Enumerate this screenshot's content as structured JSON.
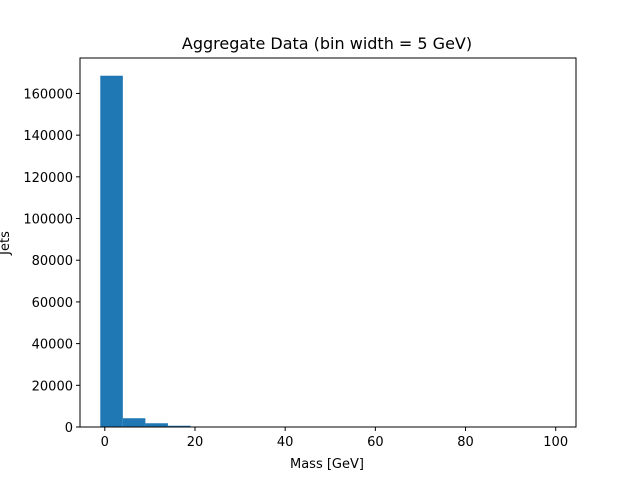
{
  "chart_data": {
    "type": "bar",
    "title": "Aggregate Data (bin width = 5 GeV)",
    "xlabel": "Mass [GeV]",
    "ylabel": "Jets",
    "xlim": [
      -5.5,
      104.5
    ],
    "ylim": [
      0,
      177000
    ],
    "x_ticks": [
      0,
      20,
      40,
      60,
      80,
      100
    ],
    "x_tick_labels": [
      "0",
      "20",
      "40",
      "60",
      "80",
      "100"
    ],
    "y_ticks": [
      0,
      20000,
      40000,
      60000,
      80000,
      100000,
      120000,
      140000,
      160000
    ],
    "y_tick_labels": [
      "0",
      "20000",
      "40000",
      "60000",
      "80000",
      "100000",
      "120000",
      "140000",
      "160000"
    ],
    "grid": false,
    "bar_color": "#1f77b4",
    "bins": [
      {
        "x0": -1,
        "x1": 4,
        "value": 168500
      },
      {
        "x0": 4,
        "x1": 9,
        "value": 4200
      },
      {
        "x0": 9,
        "x1": 14,
        "value": 1800
      },
      {
        "x0": 14,
        "x1": 19,
        "value": 600
      },
      {
        "x0": 19,
        "x1": 24,
        "value": 200
      },
      {
        "x0": 24,
        "x1": 29,
        "value": 80
      },
      {
        "x0": 29,
        "x1": 34,
        "value": 40
      },
      {
        "x0": 34,
        "x1": 39,
        "value": 20
      },
      {
        "x0": 39,
        "x1": 44,
        "value": 10
      },
      {
        "x0": 44,
        "x1": 49,
        "value": 5
      },
      {
        "x0": 49,
        "x1": 54,
        "value": 3
      },
      {
        "x0": 54,
        "x1": 59,
        "value": 2
      },
      {
        "x0": 59,
        "x1": 64,
        "value": 1
      },
      {
        "x0": 64,
        "x1": 69,
        "value": 1
      },
      {
        "x0": 69,
        "x1": 74,
        "value": 1
      },
      {
        "x0": 74,
        "x1": 79,
        "value": 0
      },
      {
        "x0": 79,
        "x1": 84,
        "value": 0
      },
      {
        "x0": 84,
        "x1": 89,
        "value": 0
      },
      {
        "x0": 89,
        "x1": 94,
        "value": 0
      },
      {
        "x0": 94,
        "x1": 99,
        "value": 0
      }
    ]
  }
}
